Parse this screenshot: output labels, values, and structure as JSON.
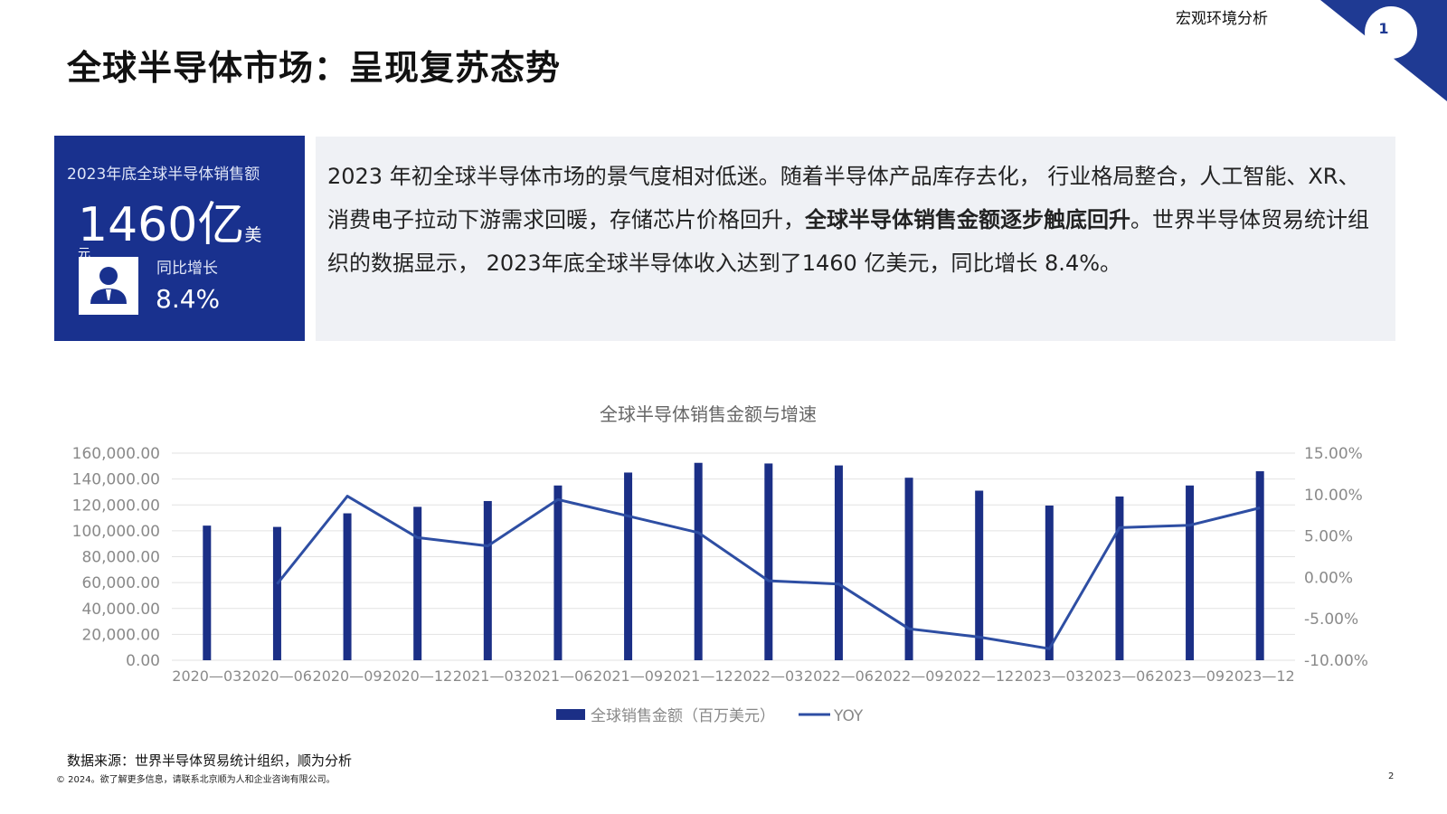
{
  "header": {
    "section_label": "宏观环境分析",
    "page_badge": "1",
    "title": "全球半导体市场：呈现复苏态势"
  },
  "kpi": {
    "label": "2023年底全球半导体销售额",
    "value": "1460亿",
    "unit": "美",
    "unit_tail": "元",
    "growth_label": "同比增长",
    "growth_value": "8.4%",
    "icon": "person-icon"
  },
  "summary": {
    "part1": "2023 年初全球半导体市场的景气度相对低迷。随着半导体产品库存去化， 行业格局整合，人工智能、XR、消费电子拉动下游需求回暖，存储芯片价格回升，",
    "highlight": "全球半导体销售金额逐步触底回升",
    "part2": "。世界半导体贸易统计组织的数据显示， 2023年底全球半导体收入达到了1460 亿美元，同比增长 8.4%。"
  },
  "chart_data": {
    "type": "bar",
    "title": "全球半导体销售金额与增速",
    "categories": [
      "2020-03",
      "2020-06",
      "2020-09",
      "2020-12",
      "2021-03",
      "2021-06",
      "2021-09",
      "2021-12",
      "2022-03",
      "2022-06",
      "2022-09",
      "2022-12",
      "2023-03",
      "2023-06",
      "2023-09",
      "2023-12"
    ],
    "series": [
      {
        "name": "全球销售金额（百万美元）",
        "type": "bar",
        "axis": "left",
        "values": [
          104000,
          103000,
          113500,
          118500,
          123000,
          135000,
          145000,
          152500,
          152000,
          150500,
          141000,
          131000,
          119500,
          126500,
          135000,
          146000
        ]
      },
      {
        "name": "YOY",
        "type": "line",
        "axis": "right",
        "values": [
          null,
          -0.8,
          9.8,
          4.8,
          3.8,
          9.4,
          7.4,
          5.4,
          -0.4,
          -0.8,
          -6.2,
          -7.2,
          -8.6,
          6.0,
          6.3,
          8.4
        ]
      }
    ],
    "y_left": {
      "min": 0,
      "max": 160000,
      "step": 20000,
      "tick_labels": [
        "0.00",
        "20,000.00",
        "40,000.00",
        "60,000.00",
        "80,000.00",
        "100,000.00",
        "120,000.00",
        "140,000.00",
        "160,000.00"
      ]
    },
    "y_right": {
      "min": -10,
      "max": 15,
      "step": 5,
      "tick_labels": [
        "-10.00%",
        "-5.00%",
        "0.00%",
        "5.00%",
        "10.00%",
        "15.00%"
      ]
    },
    "x_tick_labels": [
      "2020—03",
      "2020—06",
      "2020—09",
      "2020—12",
      "2021—03",
      "2021—06",
      "2021—09",
      "2021—12",
      "2022—03",
      "2022—06",
      "2022—09",
      "2022—12",
      "2023—03",
      "2023—06",
      "2023—09",
      "2023—12"
    ],
    "grid": true,
    "legend": "bottom",
    "colors": {
      "bar": "#1b2f86",
      "line": "#2e4ea3",
      "grid": "#e2e2e2",
      "axis_text": "#8a8a8a"
    }
  },
  "footer": {
    "source": "数据来源：世界半导体贸易统计组织，顺为分析",
    "copyright": "© 2024。欲了解更多信息，请联系北京顺为人和企业咨询有限公司。",
    "page_number": "2"
  },
  "colors": {
    "brand": "#19318e",
    "summary_bg": "#eff1f5"
  }
}
